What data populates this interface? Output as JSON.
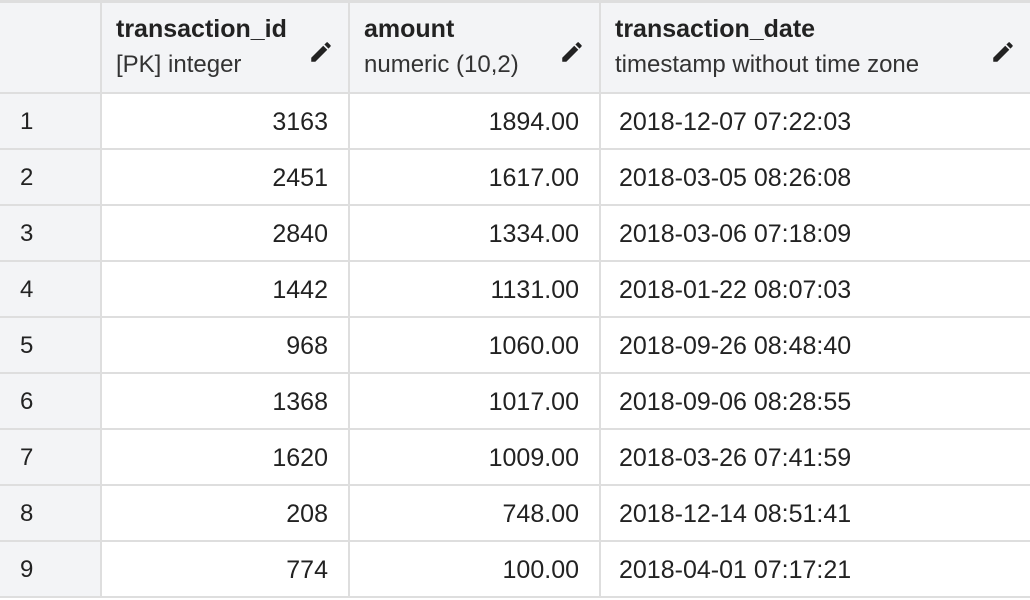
{
  "columns": [
    {
      "name": "transaction_id",
      "type": "[PK] integer"
    },
    {
      "name": "amount",
      "type": "numeric (10,2)"
    },
    {
      "name": "transaction_date",
      "type": "timestamp without time zone"
    }
  ],
  "icons": {
    "edit": "pencil-icon"
  },
  "rows": [
    {
      "num": "1",
      "transaction_id": "3163",
      "amount": "1894.00",
      "transaction_date": "2018-12-07 07:22:03"
    },
    {
      "num": "2",
      "transaction_id": "2451",
      "amount": "1617.00",
      "transaction_date": "2018-03-05 08:26:08"
    },
    {
      "num": "3",
      "transaction_id": "2840",
      "amount": "1334.00",
      "transaction_date": "2018-03-06 07:18:09"
    },
    {
      "num": "4",
      "transaction_id": "1442",
      "amount": "1131.00",
      "transaction_date": "2018-01-22 08:07:03"
    },
    {
      "num": "5",
      "transaction_id": "968",
      "amount": "1060.00",
      "transaction_date": "2018-09-26 08:48:40"
    },
    {
      "num": "6",
      "transaction_id": "1368",
      "amount": "1017.00",
      "transaction_date": "2018-09-06 08:28:55"
    },
    {
      "num": "7",
      "transaction_id": "1620",
      "amount": "1009.00",
      "transaction_date": "2018-03-26 07:41:59"
    },
    {
      "num": "8",
      "transaction_id": "208",
      "amount": "748.00",
      "transaction_date": "2018-12-14 08:51:41"
    },
    {
      "num": "9",
      "transaction_id": "774",
      "amount": "100.00",
      "transaction_date": "2018-04-01 07:17:21"
    }
  ]
}
